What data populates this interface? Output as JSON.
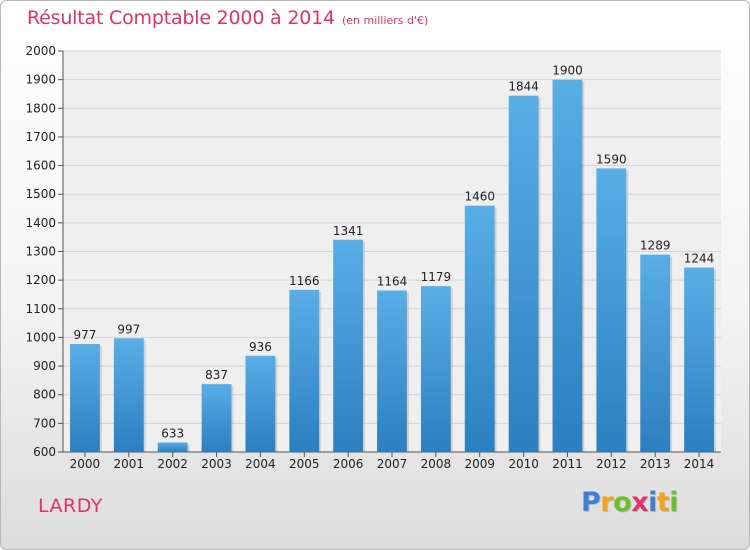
{
  "header": {
    "title": "Résultat Comptable 2000 à 2014",
    "subtitle": "(en milliers d'€)"
  },
  "commune": "LARDY",
  "logo": {
    "text": "Proxiti",
    "letters": [
      {
        "char": "P",
        "color": "#3d7fd1"
      },
      {
        "char": "r",
        "color": "#f2a21b"
      },
      {
        "char": "o",
        "color": "#6cbf2a"
      },
      {
        "char": "x",
        "color": "#e0336a"
      },
      {
        "char": "i",
        "color": "#3d7fd1"
      },
      {
        "char": "t",
        "color": "#f2a21b"
      },
      {
        "char": "i",
        "color": "#6cbf2a"
      }
    ]
  },
  "colors": {
    "title": "#e0336a",
    "bar_top": "#5aaee6",
    "bar_bottom": "#2c7fc0",
    "grid": "#d4d4d4",
    "axis": "#555555"
  },
  "chart_data": {
    "type": "bar",
    "title": "Résultat Comptable 2000 à 2014",
    "subtitle": "(en milliers d'€)",
    "categories": [
      "2000",
      "2001",
      "2002",
      "2003",
      "2004",
      "2005",
      "2006",
      "2007",
      "2008",
      "2009",
      "2010",
      "2011",
      "2012",
      "2013",
      "2014"
    ],
    "values": [
      977,
      997,
      633,
      837,
      936,
      1166,
      1341,
      1164,
      1179,
      1460,
      1844,
      1900,
      1590,
      1289,
      1244
    ],
    "ylim": [
      600,
      2000
    ],
    "yticks": [
      600,
      700,
      800,
      900,
      1000,
      1100,
      1200,
      1300,
      1400,
      1500,
      1600,
      1700,
      1800,
      1900,
      2000
    ],
    "grid": true,
    "xlabel": "",
    "ylabel": ""
  }
}
